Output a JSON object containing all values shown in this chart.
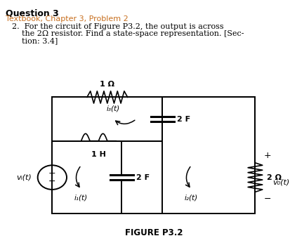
{
  "title_line1": "Question 3",
  "title_line2": "Textbook, Chapter 3, Problem 2",
  "problem_line1": "2.  For the circuit of Figure P3.2, the output is across",
  "problem_line2": "    the 2Ω resistor. Find a state-space representation. [Sec-",
  "problem_line3": "    tion: 3.4]",
  "figure_label": "FIGURE P3.2",
  "background_color": "#ffffff",
  "orange_color": "#c87020",
  "resistor_top_label": "1 Ω",
  "inductor_label": "1 H",
  "capacitor_top_label": "2 F",
  "capacitor_bottom_label": "2 F",
  "resistor_right_label": "2 Ω",
  "i3_label": "i₃(t)",
  "i1_label": "i₁(t)",
  "i2_label": "i₂(t)",
  "vo_label": "v₀(t)",
  "vi_label": "vᵢ(t)",
  "BL": 0.18,
  "BR": 0.88,
  "BT": 0.6,
  "BB": 0.12,
  "MID": 0.42,
  "DIV": 0.56
}
